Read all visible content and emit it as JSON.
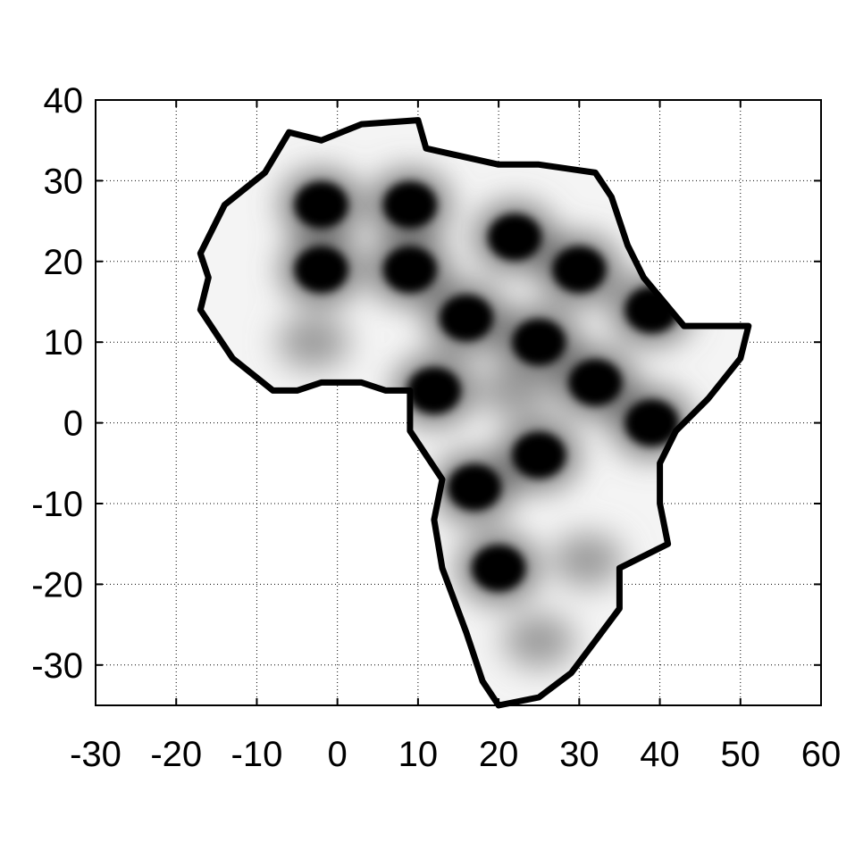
{
  "chart_data": {
    "type": "heatmap",
    "title": "",
    "xlabel": "",
    "ylabel": "",
    "xlim": [
      -30,
      60
    ],
    "ylim": [
      -35,
      40
    ],
    "x_ticks": [
      -30,
      -20,
      -10,
      0,
      10,
      20,
      30,
      40,
      50,
      60
    ],
    "y_ticks": [
      -30,
      -20,
      -10,
      0,
      10,
      20,
      30,
      40
    ],
    "x_tick_labels": [
      "-30",
      "-20",
      "-10",
      "0",
      "10",
      "20",
      "30",
      "40",
      "50",
      "60"
    ],
    "y_tick_labels": [
      "-30",
      "-20",
      "-10",
      "0",
      "10",
      "20",
      "30",
      "40"
    ],
    "grid": true,
    "colormap": "grayscale",
    "outline_color": "#000000",
    "description_values": {
      "region_outline_lonlat": [
        [
          -17,
          21
        ],
        [
          -14,
          27
        ],
        [
          -9,
          31
        ],
        [
          -6,
          36
        ],
        [
          -2,
          35
        ],
        [
          3,
          37
        ],
        [
          10,
          37.5
        ],
        [
          11,
          34
        ],
        [
          20,
          32
        ],
        [
          25,
          32
        ],
        [
          32,
          31
        ],
        [
          34,
          28
        ],
        [
          36,
          22
        ],
        [
          38,
          18
        ],
        [
          43,
          12
        ],
        [
          48,
          12
        ],
        [
          51,
          12
        ],
        [
          50,
          8
        ],
        [
          46,
          3
        ],
        [
          42,
          -1
        ],
        [
          40,
          -5
        ],
        [
          40,
          -10
        ],
        [
          41,
          -15
        ],
        [
          35,
          -18
        ],
        [
          35,
          -23
        ],
        [
          32,
          -27
        ],
        [
          29,
          -31
        ],
        [
          25,
          -34
        ],
        [
          20,
          -35
        ],
        [
          18,
          -32
        ],
        [
          16,
          -26
        ],
        [
          13,
          -18
        ],
        [
          12,
          -12
        ],
        [
          13,
          -7
        ],
        [
          9,
          -1
        ],
        [
          9,
          4
        ],
        [
          6,
          4
        ],
        [
          3,
          5
        ],
        [
          -2,
          5
        ],
        [
          -5,
          4
        ],
        [
          -8,
          4
        ],
        [
          -13,
          8
        ],
        [
          -15,
          11
        ],
        [
          -17,
          14
        ],
        [
          -16,
          18
        ],
        [
          -17,
          21
        ]
      ],
      "dark_blobs_lonlat": [
        [
          -2,
          27
        ],
        [
          9,
          27
        ],
        [
          -2,
          19
        ],
        [
          9,
          19
        ],
        [
          22,
          23
        ],
        [
          30,
          19
        ],
        [
          39,
          14
        ],
        [
          16,
          13
        ],
        [
          25,
          10
        ],
        [
          12,
          4
        ],
        [
          32,
          5
        ],
        [
          39,
          0
        ],
        [
          25,
          -4
        ],
        [
          17,
          -8
        ],
        [
          20,
          -18
        ]
      ],
      "gray_blobs_lonlat": [
        [
          -3,
          10
        ],
        [
          25,
          -27
        ],
        [
          31,
          -17
        ],
        [
          22,
          4
        ]
      ]
    }
  }
}
